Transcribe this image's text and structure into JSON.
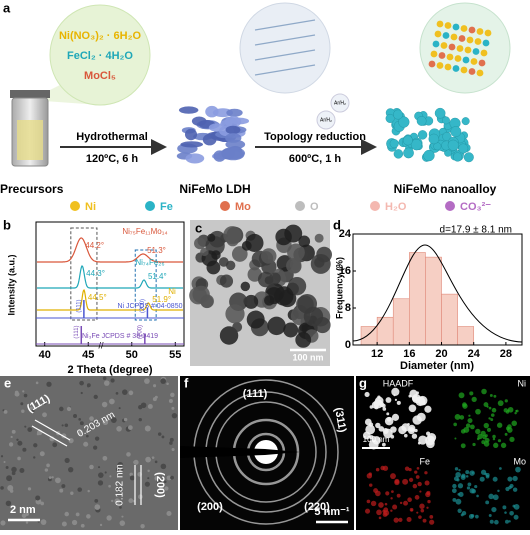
{
  "a": {
    "label": "a",
    "precursors": [
      "Ni(NO₃)₂ · 6H₂O",
      "FeCl₂ · 4H₂O",
      "MoCl₅"
    ],
    "step1": {
      "name": "Hydrothermal",
      "condition": "120ºC, 6 h"
    },
    "step2": {
      "name": "Topology reduction",
      "condition": "600ºC, 1 h"
    },
    "gas": [
      "Ar/H₂",
      "Ar/H₂"
    ],
    "stages": [
      "Precursors",
      "NiFeMo LDH",
      "NiFeMo nanoalloy"
    ],
    "legend": [
      {
        "name": "Ni",
        "color": "#f0c020"
      },
      {
        "name": "Fe",
        "color": "#2ab3c6"
      },
      {
        "name": "Mo",
        "color": "#e0704e"
      },
      {
        "name": "O",
        "color": "#bdbdbd"
      },
      {
        "name": "H₂O",
        "color": "#f4b8b0"
      },
      {
        "name": "CO₃²⁻",
        "color": "#b46cc4"
      }
    ]
  },
  "b": {
    "label": "b",
    "ylabel": "Intensity (a.u.)",
    "xlabel": "2 Theta (degree)",
    "xlim": [
      39,
      56
    ],
    "xticks": [
      40,
      45,
      50,
      55
    ],
    "patterns": [
      {
        "name": "Ni₇₅Fe₁₁Mo₁₄",
        "color": "#d9573b",
        "peaks": [
          {
            "value": 44.2,
            "label": "44.2°"
          },
          {
            "value": 51.3,
            "label": "51.3°"
          }
        ]
      },
      {
        "name": "Ni₇₄Fe₂₆",
        "color": "#1fa7b8",
        "peaks": [
          {
            "value": 44.3,
            "label": "44.3°"
          },
          {
            "value": 51.4,
            "label": "51.4°"
          }
        ]
      },
      {
        "name": "Ni",
        "color": "#e0b000",
        "peaks": [
          {
            "value": 44.5,
            "label": "44.5°"
          },
          {
            "value": 51.9,
            "label": "51.9°"
          }
        ]
      }
    ],
    "references": [
      {
        "name": "Ni JCPDS # 04-0850",
        "color": "#4a56d0",
        "lines": [
          {
            "value": 44.5,
            "label": "(111)"
          },
          {
            "value": 51.8,
            "label": "(200)"
          }
        ]
      },
      {
        "name": "Ni₃Fe JCPDS # 38-0419",
        "color": "#7a4cb6",
        "lines": [
          {
            "value": 44.2,
            "label": "(111)"
          },
          {
            "value": 51.5,
            "label": "(200)"
          }
        ]
      }
    ]
  },
  "c": {
    "label": "c",
    "scale": "100 nm"
  },
  "d": {
    "label": "d",
    "annotation": "d=17.9 ± 8.1 nm",
    "ylabel": "Frequency (%)",
    "xlabel": "Diameter (nm)",
    "xlim": [
      9,
      30
    ],
    "ylim": [
      0,
      24
    ],
    "xticks": [
      12,
      16,
      20,
      24,
      28
    ],
    "yticks": [
      0,
      8,
      16,
      24
    ],
    "bins": [
      10,
      12,
      14,
      16,
      18,
      20,
      22,
      24
    ],
    "values": [
      4,
      6,
      10,
      20,
      19,
      11,
      4
    ],
    "color": "#f6cfc4"
  },
  "e": {
    "label": "e",
    "planes": [
      "(111)",
      "(200)"
    ],
    "spacings": [
      "0.203 nm",
      "0.182 nm"
    ],
    "scale": "2 nm"
  },
  "f": {
    "label": "f",
    "rings": [
      "(111)",
      "(311)",
      "(200)",
      "(220)"
    ],
    "scale": "5 nm⁻¹"
  },
  "g": {
    "label": "g",
    "maps": [
      "HAADF",
      "Ni",
      "Fe",
      "Mo"
    ],
    "scale": "100 nm"
  }
}
